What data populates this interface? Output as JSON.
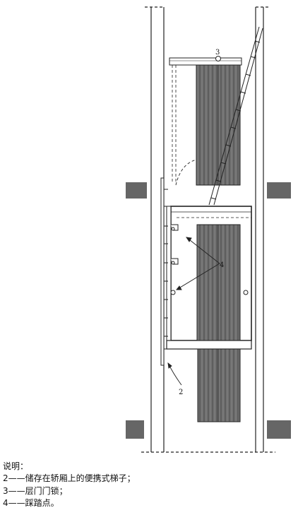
{
  "labels": {
    "ladder": "2",
    "door_lock": "3",
    "foothold": "4"
  },
  "legend": {
    "title": "说明：",
    "items": [
      {
        "number": "2",
        "dash": "——",
        "text": "储存在轿厢上的便携式梯子；"
      },
      {
        "number": "3",
        "dash": "——",
        "text": "层门门锁；"
      },
      {
        "number": "4",
        "dash": "——",
        "text": "踩踏点。"
      }
    ]
  },
  "colors": {
    "line": "#222222",
    "wood": "#6a6a6a",
    "wood_grain": "#3a3a3a",
    "floor_slab": "#666666"
  }
}
